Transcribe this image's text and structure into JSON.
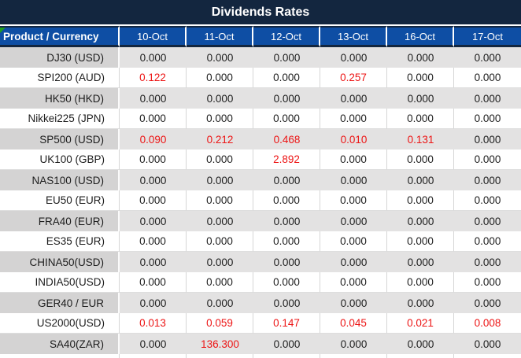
{
  "title": "Dividends Rates",
  "header": {
    "product_label": "Product / Currency",
    "dates": [
      "10-Oct",
      "11-Oct",
      "12-Oct",
      "13-Oct",
      "16-Oct",
      "17-Oct"
    ]
  },
  "colors": {
    "navy": "#13263F",
    "header_blue": "#0E4EA4",
    "red": "#ED1515",
    "row_gray": "#E3E2E2",
    "row_gray_first": "#D4D3D3",
    "green_marker": "#1FA01F"
  },
  "rows": [
    {
      "product": "DJ30 (USD)",
      "values": [
        "0.000",
        "0.000",
        "0.000",
        "0.000",
        "0.000",
        "0.000"
      ],
      "red": [
        false,
        false,
        false,
        false,
        false,
        false
      ]
    },
    {
      "product": "SPI200 (AUD)",
      "values": [
        "0.122",
        "0.000",
        "0.000",
        "0.257",
        "0.000",
        "0.000"
      ],
      "red": [
        true,
        false,
        false,
        true,
        false,
        false
      ]
    },
    {
      "product": "HK50 (HKD)",
      "values": [
        "0.000",
        "0.000",
        "0.000",
        "0.000",
        "0.000",
        "0.000"
      ],
      "red": [
        false,
        false,
        false,
        false,
        false,
        false
      ]
    },
    {
      "product": "Nikkei225 (JPN)",
      "values": [
        "0.000",
        "0.000",
        "0.000",
        "0.000",
        "0.000",
        "0.000"
      ],
      "red": [
        false,
        false,
        false,
        false,
        false,
        false
      ]
    },
    {
      "product": "SP500 (USD)",
      "values": [
        "0.090",
        "0.212",
        "0.468",
        "0.010",
        "0.131",
        "0.000"
      ],
      "red": [
        true,
        true,
        true,
        true,
        true,
        false
      ]
    },
    {
      "product": "UK100 (GBP)",
      "values": [
        "0.000",
        "0.000",
        "2.892",
        "0.000",
        "0.000",
        "0.000"
      ],
      "red": [
        false,
        false,
        true,
        false,
        false,
        false
      ]
    },
    {
      "product": "NAS100 (USD)",
      "values": [
        "0.000",
        "0.000",
        "0.000",
        "0.000",
        "0.000",
        "0.000"
      ],
      "red": [
        false,
        false,
        false,
        false,
        false,
        false
      ]
    },
    {
      "product": "EU50 (EUR)",
      "values": [
        "0.000",
        "0.000",
        "0.000",
        "0.000",
        "0.000",
        "0.000"
      ],
      "red": [
        false,
        false,
        false,
        false,
        false,
        false
      ]
    },
    {
      "product": "FRA40 (EUR)",
      "values": [
        "0.000",
        "0.000",
        "0.000",
        "0.000",
        "0.000",
        "0.000"
      ],
      "red": [
        false,
        false,
        false,
        false,
        false,
        false
      ]
    },
    {
      "product": "ES35 (EUR)",
      "values": [
        "0.000",
        "0.000",
        "0.000",
        "0.000",
        "0.000",
        "0.000"
      ],
      "red": [
        false,
        false,
        false,
        false,
        false,
        false
      ]
    },
    {
      "product": "CHINA50(USD)",
      "values": [
        "0.000",
        "0.000",
        "0.000",
        "0.000",
        "0.000",
        "0.000"
      ],
      "red": [
        false,
        false,
        false,
        false,
        false,
        false
      ]
    },
    {
      "product": "INDIA50(USD)",
      "values": [
        "0.000",
        "0.000",
        "0.000",
        "0.000",
        "0.000",
        "0.000"
      ],
      "red": [
        false,
        false,
        false,
        false,
        false,
        false
      ]
    },
    {
      "product": "GER40 / EUR",
      "values": [
        "0.000",
        "0.000",
        "0.000",
        "0.000",
        "0.000",
        "0.000"
      ],
      "red": [
        false,
        false,
        false,
        false,
        false,
        false
      ]
    },
    {
      "product": "US2000(USD)",
      "values": [
        "0.013",
        "0.059",
        "0.147",
        "0.045",
        "0.021",
        "0.008"
      ],
      "red": [
        true,
        true,
        true,
        true,
        true,
        true
      ]
    },
    {
      "product": "SA40(ZAR)",
      "values": [
        "0.000",
        "136.300",
        "0.000",
        "0.000",
        "0.000",
        "0.000"
      ],
      "red": [
        false,
        true,
        false,
        false,
        false,
        false
      ]
    }
  ]
}
